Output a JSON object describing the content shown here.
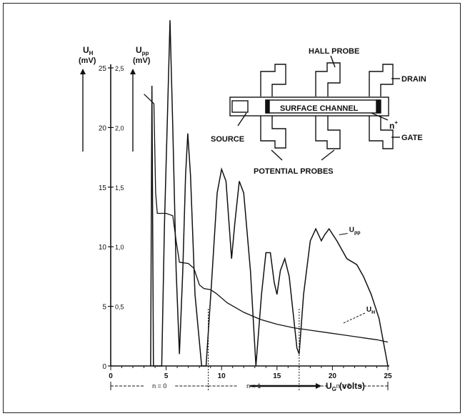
{
  "chart_data": {
    "type": "line",
    "x_axis": {
      "label_main": "U",
      "label_sub": "G",
      "label_unit": "(volts)",
      "ticks": [
        0,
        5,
        10,
        15,
        20,
        25
      ],
      "xlim": [
        0,
        25
      ]
    },
    "y_axes": [
      {
        "label_main": "U",
        "label_sub": "H",
        "unit": "(mV)",
        "ticks": [
          "0",
          "5",
          "10",
          "15",
          "20",
          "25"
        ],
        "ylim": [
          0,
          25
        ]
      },
      {
        "label_main": "U",
        "label_sub": "pp",
        "unit": "(mV)",
        "ticks": [
          "0,5",
          "1,0",
          "1,5",
          "2,0",
          "2,5"
        ],
        "ylim": [
          0,
          2.5
        ]
      }
    ],
    "series": [
      {
        "name": "U_H",
        "label_main": "U",
        "label_sub": "H",
        "axis": "U_H (mV)",
        "points": [
          [
            3.0,
            22.8
          ],
          [
            3.9,
            22.0
          ],
          [
            4.05,
            14.5
          ],
          [
            4.2,
            12.8
          ],
          [
            5.0,
            12.8
          ],
          [
            5.6,
            12.6
          ],
          [
            5.9,
            10.5
          ],
          [
            6.2,
            8.7
          ],
          [
            7.0,
            8.6
          ],
          [
            7.5,
            8.2
          ],
          [
            8.0,
            6.8
          ],
          [
            8.4,
            6.5
          ],
          [
            9.0,
            6.4
          ],
          [
            9.5,
            6.1
          ],
          [
            10.5,
            5.3
          ],
          [
            12,
            4.5
          ],
          [
            13.5,
            3.9
          ],
          [
            15,
            3.5
          ],
          [
            16.5,
            3.2
          ],
          [
            18,
            3.0
          ],
          [
            19.5,
            2.8
          ],
          [
            21,
            2.6
          ],
          [
            22.5,
            2.4
          ],
          [
            24,
            2.2
          ],
          [
            25,
            2.0
          ]
        ]
      },
      {
        "name": "U_pp",
        "label_main": "U",
        "label_sub": "pp",
        "axis": "U_pp (mV)",
        "points": [
          [
            3.6,
            0
          ],
          [
            3.72,
            2.35
          ],
          [
            3.85,
            0
          ],
          [
            4.3,
            0
          ],
          [
            4.6,
            0
          ],
          [
            4.85,
            1.2
          ],
          [
            5.15,
            2.2
          ],
          [
            5.35,
            2.9
          ],
          [
            5.6,
            2.0
          ],
          [
            5.9,
            0.8
          ],
          [
            6.2,
            0.1
          ],
          [
            6.5,
            0.8
          ],
          [
            6.75,
            1.6
          ],
          [
            6.95,
            1.95
          ],
          [
            7.2,
            1.6
          ],
          [
            7.6,
            0.6
          ],
          [
            8.2,
            0
          ],
          [
            8.6,
            0
          ],
          [
            9.1,
            0.7
          ],
          [
            9.6,
            1.45
          ],
          [
            10.0,
            1.65
          ],
          [
            10.4,
            1.55
          ],
          [
            10.75,
            1.1
          ],
          [
            10.9,
            0.9
          ],
          [
            11.2,
            1.2
          ],
          [
            11.6,
            1.55
          ],
          [
            12.0,
            1.45
          ],
          [
            12.6,
            0.8
          ],
          [
            13.1,
            0
          ],
          [
            13.6,
            0.6
          ],
          [
            14.0,
            0.95
          ],
          [
            14.4,
            0.95
          ],
          [
            14.75,
            0.7
          ],
          [
            15.0,
            0.6
          ],
          [
            15.3,
            0.8
          ],
          [
            15.7,
            0.9
          ],
          [
            16.1,
            0.75
          ],
          [
            16.8,
            0.15
          ],
          [
            17.0,
            0.1
          ],
          [
            17.4,
            0.6
          ],
          [
            18.0,
            1.05
          ],
          [
            18.5,
            1.15
          ],
          [
            19.0,
            1.05
          ],
          [
            19.3,
            1.1
          ],
          [
            19.7,
            1.15
          ],
          [
            20.4,
            1.05
          ],
          [
            21.3,
            0.9
          ],
          [
            22.2,
            0.85
          ],
          [
            22.8,
            0.75
          ],
          [
            23.5,
            0.6
          ],
          [
            24.2,
            0.4
          ],
          [
            24.8,
            0.1
          ],
          [
            25.0,
            0
          ]
        ]
      }
    ],
    "regions": [
      {
        "label": "n = 0",
        "from": 0,
        "to": 8.8
      },
      {
        "label": "n = 1",
        "from": 8.8,
        "to": 17.0
      },
      {
        "label": "n = 2",
        "from": 17.0,
        "to": 25
      }
    ],
    "curve_labels": [
      {
        "main": "U",
        "sub": "pp",
        "series": "U_pp",
        "x": 20.6,
        "y": 1.1
      },
      {
        "main": "U",
        "sub": "H",
        "series": "U_H",
        "x": 21.0,
        "y": 3.6
      }
    ],
    "inset": {
      "labels": {
        "hall_probe": "HALL PROBE",
        "drain": "DRAIN",
        "surface_channel": "SURFACE CHANNEL",
        "n_plus": "n",
        "n_plus_sup": "+",
        "source": "SOURCE",
        "gate": "GATE",
        "potential_probes": "POTENTIAL PROBES"
      }
    },
    "colors": {
      "ink": "#111111",
      "background": "#ffffff"
    }
  }
}
